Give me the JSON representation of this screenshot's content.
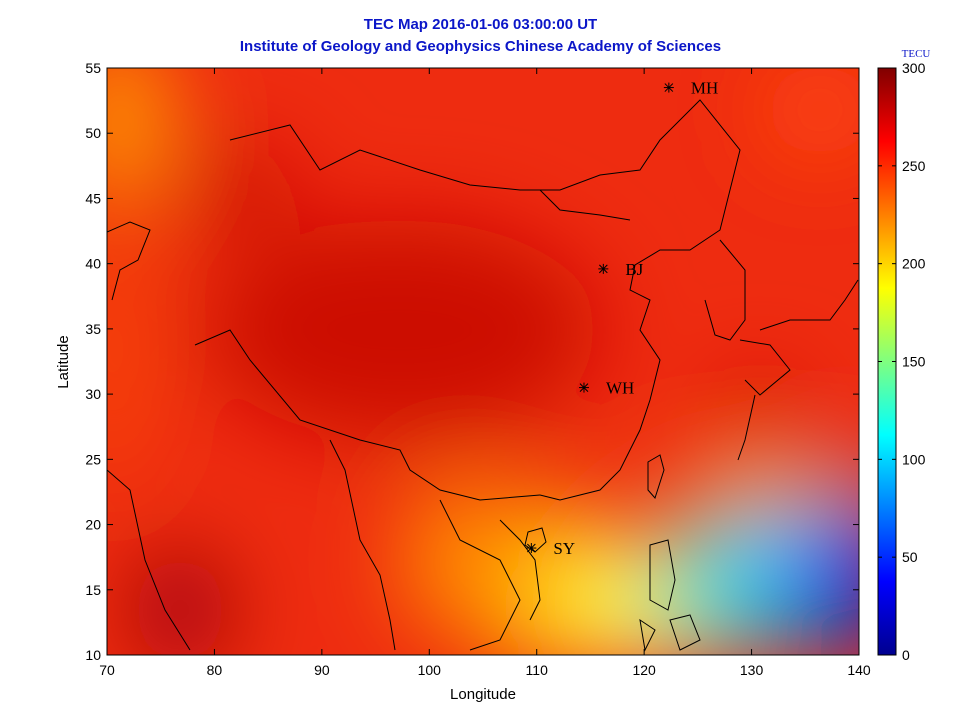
{
  "header": {
    "title": "TEC Map 2016-01-06 03:00:00 UT",
    "subtitle": "Institute of Geology and Geophysics Chinese Academy of Sciences"
  },
  "chart_data": {
    "type": "heatmap",
    "xlabel": "Longitude",
    "ylabel": "Latitude",
    "xlim": [
      70,
      140
    ],
    "ylim": [
      10,
      55
    ],
    "xticks": [
      "70",
      "80",
      "90",
      "100",
      "110",
      "120",
      "130",
      "140"
    ],
    "yticks": [
      "10",
      "15",
      "20",
      "25",
      "30",
      "35",
      "40",
      "45",
      "50",
      "55"
    ],
    "colorbar": {
      "unit": "TECU",
      "min": 0,
      "max": 300,
      "ticks": [
        "0",
        "50",
        "100",
        "150",
        "200",
        "250",
        "300"
      ]
    },
    "stations": [
      {
        "name": "MH",
        "lon": 122.3,
        "lat": 53.5
      },
      {
        "name": "BJ",
        "lon": 116.2,
        "lat": 39.6
      },
      {
        "name": "WH",
        "lon": 114.4,
        "lat": 30.5
      },
      {
        "name": "SY",
        "lon": 109.5,
        "lat": 18.2
      }
    ]
  }
}
